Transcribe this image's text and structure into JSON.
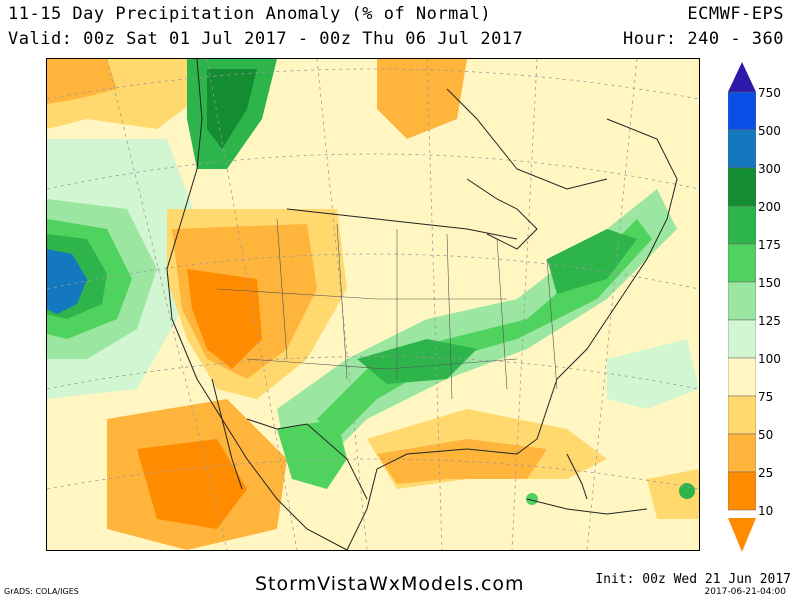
{
  "header": {
    "title": "11-15 Day Precipitation Anomaly (% of Normal)",
    "valid": "Valid: 00z Sat 01 Jul 2017 - 00z Thu 06 Jul 2017",
    "model": "ECMWF-EPS",
    "hour": "Hour: 240 - 360"
  },
  "colorbar": {
    "levels": [
      "750",
      "500",
      "300",
      "200",
      "175",
      "150",
      "125",
      "100",
      "75",
      "50",
      "25",
      "10"
    ],
    "colors": {
      "c750": "#2e1aa8",
      "c500": "#0a50e6",
      "c300": "#1478be",
      "c200": "#148c32",
      "c175": "#2db44b",
      "c150": "#50d25f",
      "c125": "#9be6a0",
      "c100": "#d2f5d2",
      "c75": "#fff6c2",
      "c50": "#ffd86e",
      "c25": "#ffb43c",
      "c10": "#ff8c00"
    }
  },
  "footer": {
    "grads": "GrADS: COLA/IGES",
    "site": "StormVistaWxModels.com",
    "init": "Init: 00z Wed 21 Jun 2017",
    "stamp": "2017-06-21-04:00"
  }
}
